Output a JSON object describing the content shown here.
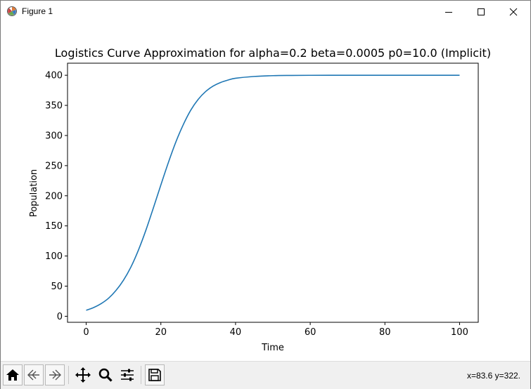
{
  "window": {
    "title": "Figure 1",
    "icon": "matplotlib-figure-icon",
    "controls": [
      "minimize-icon",
      "maximize-icon",
      "close-icon"
    ]
  },
  "chart_data": {
    "type": "line",
    "title": "Logistics Curve Approximation for alpha=0.2 beta=0.0005 p0=10.0 (Implicit)",
    "xlabel": "Time",
    "ylabel": "Population",
    "xlim": [
      -5,
      105
    ],
    "ylim": [
      -10,
      420
    ],
    "xticks": [
      0,
      20,
      40,
      60,
      80,
      100
    ],
    "yticks": [
      0,
      50,
      100,
      150,
      200,
      250,
      300,
      350,
      400
    ],
    "grid": false,
    "legend": "none",
    "series": [
      {
        "color": "#1f77b4",
        "x": [
          0,
          2,
          4,
          6,
          8,
          10,
          12,
          14,
          16,
          18,
          20,
          22,
          24,
          26,
          28,
          30,
          32,
          34,
          36,
          38,
          40,
          45,
          50,
          55,
          60,
          65,
          70,
          80,
          90,
          100
        ],
        "y": [
          10,
          14.5,
          21,
          30,
          43,
          60,
          82,
          110,
          143,
          180,
          218,
          255,
          289,
          318,
          342,
          360,
          373,
          382,
          388,
          392,
          395,
          398,
          399.3,
          399.7,
          399.9,
          400,
          400,
          400,
          400,
          400
        ]
      }
    ]
  },
  "toolbar": {
    "buttons": [
      {
        "icon": "home-icon"
      },
      {
        "icon": "back-arrow-icon"
      },
      {
        "icon": "forward-arrow-icon"
      },
      {
        "icon": "pan-move-icon"
      },
      {
        "icon": "zoom-magnifier-icon"
      },
      {
        "icon": "configure-subplots-icon"
      },
      {
        "icon": "save-disk-icon"
      }
    ],
    "coords": "x=83.6 y=322."
  }
}
